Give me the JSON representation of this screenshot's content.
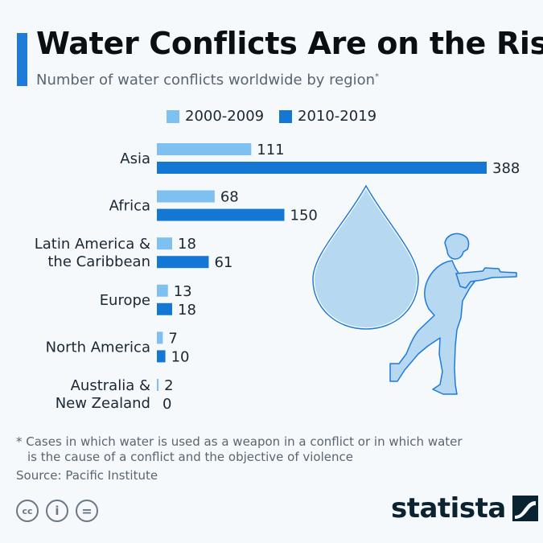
{
  "header": {
    "title": "Water Conflicts Are on the Rise",
    "subtitle": "Number of water conflicts worldwide by region",
    "subtitle_mark": "*"
  },
  "colors": {
    "accent": "#1f7ad9",
    "series_2000_2009": "#7ec0f0",
    "series_2010_2019": "#1577d4",
    "illustration": "#b7d8f1",
    "illustration_stroke": "#1f7ad9"
  },
  "chart_data": {
    "type": "bar",
    "orientation": "horizontal",
    "categories": [
      "Asia",
      "Africa",
      "Latin America & the Caribbean",
      "Europe",
      "North America",
      "Australia & New Zealand"
    ],
    "category_lines": [
      [
        "Asia"
      ],
      [
        "Africa"
      ],
      [
        "Latin America &",
        "the Caribbean"
      ],
      [
        "Europe"
      ],
      [
        "North America"
      ],
      [
        "Australia &",
        "New Zealand"
      ]
    ],
    "series": [
      {
        "name": "2000-2009",
        "values": [
          111,
          68,
          18,
          13,
          7,
          2
        ]
      },
      {
        "name": "2010-2019",
        "values": [
          388,
          150,
          61,
          18,
          10,
          0
        ]
      }
    ],
    "legend_position": "top",
    "grid": false
  },
  "footer": {
    "footnote_line1": "* Cases in which water is used as a weapon in a conflict or in which water",
    "footnote_line2": "is the cause of a conflict and the objective of violence",
    "source": "Source: Pacific Institute",
    "brand": "statista",
    "license_icons": [
      "cc-icon",
      "by-icon",
      "nd-icon"
    ],
    "license_labels": [
      "cc",
      "i",
      "="
    ]
  },
  "illustration": [
    "water-drop-icon",
    "soldier-icon"
  ]
}
